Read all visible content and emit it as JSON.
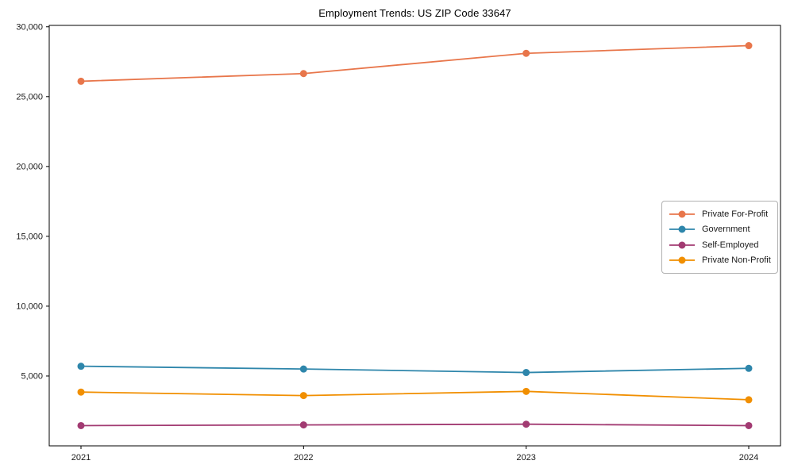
{
  "window": {
    "background": "#ffffff"
  },
  "chart_data": {
    "type": "line",
    "title": "Employment Trends: US ZIP Code 33647",
    "categories": [
      "2021",
      "2022",
      "2023",
      "2024"
    ],
    "series": [
      {
        "name": "Private For-Profit",
        "color": "#E8764B",
        "values": [
          26100,
          26650,
          28100,
          28650
        ]
      },
      {
        "name": "Government",
        "color": "#2E86AB",
        "values": [
          5700,
          5500,
          5250,
          5550
        ]
      },
      {
        "name": "Self-Employed",
        "color": "#A23B72",
        "values": [
          1450,
          1500,
          1550,
          1450
        ]
      },
      {
        "name": "Private Non-Profit",
        "color": "#F18F01",
        "values": [
          3850,
          3600,
          3900,
          3300
        ]
      }
    ],
    "xlabel": "",
    "ylabel": "",
    "ylim": [
      0,
      30100
    ],
    "yticks": [
      5000,
      10000,
      15000,
      20000,
      25000,
      30000
    ],
    "ytick_labels": [
      "5,000",
      "10,000",
      "15,000",
      "20,000",
      "25,000",
      "30,000"
    ],
    "grid": false,
    "legend": {
      "position": "middle-right",
      "border_color": "#b0b0b0"
    },
    "axis_color": "#000000",
    "tick_label_color": "#1a1a1a",
    "marker_style": "circle"
  }
}
